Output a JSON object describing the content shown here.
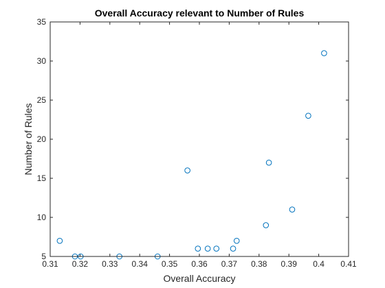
{
  "chart_data": {
    "type": "scatter",
    "title": "Overall Accuracy relevant to Number of Rules",
    "xlabel": "Overall Accuracy",
    "ylabel": "Number of Rules",
    "xlim": [
      0.31,
      0.41
    ],
    "ylim": [
      5,
      35
    ],
    "xticks": [
      "0.31",
      "0.32",
      "0.33",
      "0.34",
      "0.35",
      "0.36",
      "0.37",
      "0.38",
      "0.39",
      "0.4",
      "0.41"
    ],
    "yticks": [
      "5",
      "10",
      "15",
      "20",
      "25",
      "30",
      "35"
    ],
    "grid": false,
    "marker": "circle",
    "color": "#0072BD",
    "points": [
      {
        "x": 0.3132,
        "y": 7
      },
      {
        "x": 0.3183,
        "y": 5
      },
      {
        "x": 0.3202,
        "y": 5
      },
      {
        "x": 0.3332,
        "y": 5
      },
      {
        "x": 0.346,
        "y": 5
      },
      {
        "x": 0.356,
        "y": 16
      },
      {
        "x": 0.3595,
        "y": 6
      },
      {
        "x": 0.3628,
        "y": 6
      },
      {
        "x": 0.3657,
        "y": 6
      },
      {
        "x": 0.3713,
        "y": 6
      },
      {
        "x": 0.3725,
        "y": 7
      },
      {
        "x": 0.3823,
        "y": 9
      },
      {
        "x": 0.3833,
        "y": 17
      },
      {
        "x": 0.3911,
        "y": 11
      },
      {
        "x": 0.3965,
        "y": 23
      },
      {
        "x": 0.4018,
        "y": 31
      }
    ]
  }
}
